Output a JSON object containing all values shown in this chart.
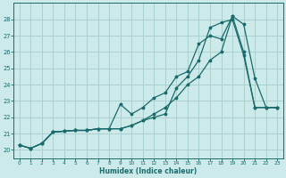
{
  "xlabel": "Humidex (Indice chaleur)",
  "bg_color": "#cceaea",
  "grid_color": "#aad0d0",
  "line_color": "#1a6b6b",
  "xlim": [
    -0.5,
    23.5
  ],
  "ylim": [
    19.5,
    29.0
  ],
  "xticks": [
    0,
    1,
    2,
    3,
    4,
    5,
    6,
    7,
    8,
    9,
    10,
    11,
    12,
    13,
    14,
    15,
    16,
    17,
    18,
    19,
    20,
    21,
    22,
    23
  ],
  "yticks": [
    20,
    21,
    22,
    23,
    24,
    25,
    26,
    27,
    28
  ],
  "line1_x": [
    0,
    1,
    2,
    3,
    4,
    5,
    6,
    7,
    8,
    9,
    10,
    11,
    12,
    13,
    14,
    15,
    16,
    17,
    18,
    19,
    20,
    21,
    22,
    23
  ],
  "line1_y": [
    20.3,
    20.1,
    20.4,
    21.1,
    21.15,
    21.2,
    21.2,
    21.3,
    21.3,
    21.3,
    21.5,
    21.8,
    22.2,
    22.6,
    23.2,
    24.0,
    24.5,
    25.5,
    26.0,
    28.2,
    27.7,
    24.4,
    22.6,
    22.6
  ],
  "line2_x": [
    0,
    1,
    2,
    3,
    4,
    5,
    6,
    7,
    8,
    9,
    10,
    11,
    12,
    13,
    14,
    15,
    16,
    17,
    18,
    19,
    20,
    21,
    22,
    23
  ],
  "line2_y": [
    20.3,
    20.1,
    20.4,
    21.1,
    21.15,
    21.2,
    21.2,
    21.3,
    21.3,
    22.8,
    22.2,
    22.6,
    23.2,
    23.5,
    24.5,
    24.8,
    26.5,
    27.0,
    26.8,
    28.2,
    26.0,
    22.6,
    22.6,
    22.6
  ],
  "line3_x": [
    0,
    1,
    2,
    3,
    4,
    5,
    6,
    7,
    8,
    9,
    10,
    11,
    12,
    13,
    14,
    15,
    16,
    17,
    18,
    19,
    20,
    21,
    22,
    23
  ],
  "line3_y": [
    20.3,
    20.1,
    20.4,
    21.1,
    21.15,
    21.2,
    21.2,
    21.3,
    21.3,
    21.3,
    21.5,
    21.8,
    22.0,
    22.2,
    23.8,
    24.5,
    25.5,
    27.5,
    27.8,
    28.0,
    25.8,
    22.6,
    22.6,
    22.6
  ]
}
